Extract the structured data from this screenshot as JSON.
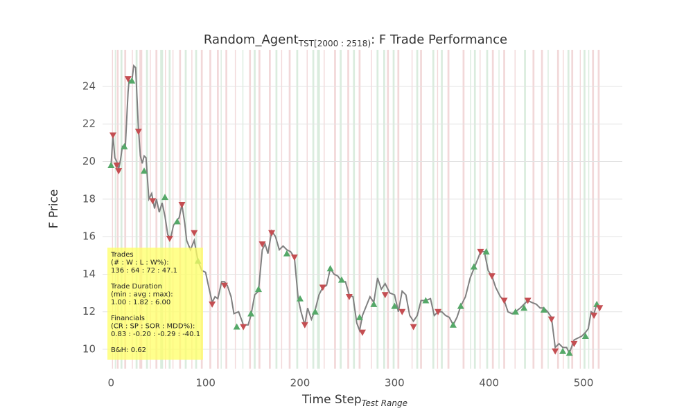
{
  "chart_data": {
    "type": "trade-line",
    "title_main": "Random_Agent",
    "title_sub": "TST[2000 : 2518)",
    "title_rest": ": F Trade Performance",
    "x_label_main": "Time Step",
    "x_label_sub": "Test Range",
    "y_label": "F Price",
    "xlim": [
      -9,
      541
    ],
    "ylim": [
      8.97,
      25.95
    ],
    "xticks": [
      0,
      100,
      200,
      300,
      400,
      500
    ],
    "yticks": [
      10,
      12,
      14,
      16,
      18,
      20,
      22,
      24
    ],
    "grid": true,
    "line_color": "#808080",
    "buy_color": "#55a868",
    "sell_color": "#c44e52",
    "x": [
      0,
      2,
      4,
      6,
      8,
      10,
      12,
      15,
      18,
      19,
      22,
      24,
      26,
      29,
      31,
      33,
      35,
      37,
      40,
      43,
      46,
      48,
      51,
      54,
      57,
      60,
      63,
      66,
      70,
      72,
      75,
      78,
      80,
      84,
      88,
      92,
      96,
      100,
      103,
      107,
      110,
      113,
      117,
      120,
      123,
      127,
      130,
      135,
      140,
      145,
      148,
      152,
      156,
      160,
      163,
      166,
      170,
      174,
      178,
      182,
      186,
      190,
      194,
      198,
      201,
      205,
      208,
      212,
      216,
      220,
      224,
      228,
      232,
      236,
      240,
      244,
      248,
      252,
      256,
      260,
      263,
      266,
      270,
      274,
      278,
      282,
      286,
      290,
      295,
      300,
      304,
      308,
      312,
      316,
      320,
      324,
      328,
      333,
      338,
      342,
      346,
      350,
      354,
      358,
      362,
      366,
      370,
      375,
      380,
      384,
      388,
      391,
      395,
      399,
      403,
      407,
      412,
      416,
      420,
      424,
      428,
      433,
      437,
      441,
      445,
      450,
      454,
      458,
      462,
      466,
      470,
      474,
      478,
      482,
      485,
      490,
      494,
      498,
      502,
      505,
      508,
      511,
      514,
      517
    ],
    "values": [
      19.8,
      21.4,
      20.2,
      20.0,
      19.6,
      20.1,
      20.8,
      20.7,
      23.7,
      24.3,
      24.3,
      25.1,
      25.0,
      21.7,
      20.3,
      19.9,
      20.3,
      20.2,
      18.0,
      18.3,
      17.5,
      18.0,
      17.3,
      17.8,
      17.1,
      16.1,
      15.9,
      16.6,
      16.9,
      17.0,
      17.7,
      16.7,
      15.8,
      15.3,
      15.8,
      14.7,
      14.2,
      14.1,
      13.4,
      12.5,
      12.8,
      12.7,
      13.6,
      13.6,
      13.4,
      12.8,
      11.9,
      12.0,
      11.3,
      11.3,
      11.8,
      12.9,
      13.1,
      15.3,
      15.6,
      15.1,
      16.3,
      16.0,
      15.3,
      15.5,
      15.3,
      15.2,
      14.9,
      12.7,
      12.0,
      11.3,
      12.2,
      11.6,
      12.1,
      12.9,
      13.3,
      13.4,
      14.3,
      14.0,
      13.9,
      13.6,
      13.6,
      12.9,
      12.8,
      11.4,
      11.0,
      11.8,
      12.3,
      12.8,
      12.5,
      13.8,
      13.2,
      13.5,
      13.0,
      12.9,
      12.0,
      13.1,
      12.9,
      11.8,
      11.5,
      11.8,
      12.6,
      12.6,
      12.7,
      11.8,
      12.0,
      12.0,
      11.8,
      11.7,
      11.3,
      11.7,
      12.3,
      12.8,
      13.8,
      14.3,
      14.8,
      15.2,
      15.2,
      14.2,
      13.9,
      13.3,
      12.8,
      12.6,
      12.0,
      11.9,
      12.0,
      12.2,
      12.4,
      12.6,
      12.5,
      12.4,
      12.2,
      12.2,
      12.0,
      11.7,
      10.1,
      10.3,
      10.1,
      10.1,
      9.8,
      10.5,
      10.6,
      10.7,
      10.9,
      11.1,
      12.0,
      11.9,
      12.4,
      12.2
    ],
    "buys": {
      "x": [
        0,
        14,
        22,
        35,
        57,
        70,
        92,
        133,
        148,
        156,
        186,
        200,
        216,
        232,
        244,
        263,
        278,
        300,
        333,
        362,
        370,
        384,
        397,
        428,
        437,
        458,
        478,
        485,
        502,
        514
      ],
      "values": [
        19.8,
        20.8,
        24.3,
        19.5,
        18.1,
        16.8,
        14.7,
        11.2,
        11.9,
        13.2,
        15.1,
        12.7,
        12.0,
        14.3,
        13.7,
        11.7,
        12.4,
        12.3,
        12.6,
        11.3,
        12.3,
        14.4,
        15.2,
        12.0,
        12.2,
        12.1,
        9.9,
        9.8,
        10.7,
        12.4
      ]
    },
    "sells": {
      "x": [
        2,
        6,
        8,
        18,
        29,
        44,
        62,
        75,
        88,
        107,
        120,
        140,
        160,
        170,
        194,
        205,
        224,
        252,
        266,
        290,
        308,
        320,
        346,
        391,
        403,
        416,
        441,
        466,
        470,
        490,
        511,
        517
      ],
      "values": [
        21.4,
        19.8,
        19.5,
        24.4,
        21.6,
        17.9,
        15.9,
        17.7,
        16.2,
        12.4,
        13.4,
        11.2,
        15.6,
        16.2,
        14.9,
        11.3,
        13.3,
        12.8,
        10.9,
        12.9,
        12.0,
        11.2,
        12.0,
        15.2,
        13.9,
        12.6,
        12.6,
        11.6,
        9.9,
        10.3,
        11.8,
        12.2
      ]
    },
    "sell_zones": [
      [
        1,
        2
      ],
      [
        6,
        8
      ],
      [
        14,
        16
      ],
      [
        22,
        23
      ],
      [
        30,
        33
      ],
      [
        41,
        42
      ],
      [
        47,
        49
      ],
      [
        57,
        58
      ],
      [
        65,
        66
      ],
      [
        72,
        74
      ],
      [
        85,
        86
      ],
      [
        95,
        97
      ],
      [
        104,
        106
      ],
      [
        112,
        114
      ],
      [
        121,
        123
      ],
      [
        131,
        132
      ],
      [
        146,
        148
      ],
      [
        156,
        158
      ],
      [
        167,
        169
      ],
      [
        180,
        181
      ],
      [
        188,
        190
      ],
      [
        207,
        208
      ],
      [
        225,
        226
      ],
      [
        236,
        238
      ],
      [
        250,
        252
      ],
      [
        262,
        264
      ],
      [
        275,
        276
      ],
      [
        292,
        294
      ],
      [
        303,
        305
      ],
      [
        318,
        319
      ],
      [
        327,
        329
      ],
      [
        345,
        346
      ],
      [
        356,
        358
      ],
      [
        372,
        374
      ],
      [
        390,
        391
      ],
      [
        403,
        405
      ],
      [
        415,
        417
      ],
      [
        427,
        428
      ],
      [
        446,
        448
      ],
      [
        455,
        457
      ],
      [
        472,
        474
      ],
      [
        478,
        479
      ],
      [
        487,
        489
      ],
      [
        496,
        497
      ],
      [
        509,
        511
      ],
      [
        515,
        517
      ]
    ],
    "buy_zones": [
      [
        4,
        5
      ],
      [
        10,
        12
      ],
      [
        26,
        28
      ],
      [
        37,
        39
      ],
      [
        52,
        55
      ],
      [
        61,
        63
      ],
      [
        78,
        80
      ],
      [
        89,
        91
      ],
      [
        116,
        117
      ],
      [
        139,
        140
      ],
      [
        151,
        153
      ],
      [
        174,
        176
      ],
      [
        196,
        198
      ],
      [
        213,
        215
      ],
      [
        218,
        221
      ],
      [
        242,
        244
      ],
      [
        256,
        258
      ],
      [
        281,
        283
      ],
      [
        288,
        290
      ],
      [
        298,
        300
      ],
      [
        323,
        325
      ],
      [
        340,
        342
      ],
      [
        349,
        351
      ],
      [
        380,
        381
      ],
      [
        384,
        386
      ],
      [
        397,
        399
      ],
      [
        410,
        411
      ],
      [
        437,
        439
      ],
      [
        462,
        463
      ],
      [
        483,
        485
      ],
      [
        500,
        502
      ],
      [
        505,
        506
      ]
    ],
    "stats_box": [
      [
        "Trades",
        "(# : W : L : W%):",
        "136 : 64 : 72 : 47.1"
      ],
      [
        "Trade Duration",
        "(min : avg : max):",
        "1.00 : 1.82 : 6.00"
      ],
      [
        "Financials",
        "(CR : SP : SOR : MDD%):",
        "0.83 : -0.20 : -0.29 : -40.1"
      ],
      [
        "B&H: 0.62"
      ]
    ]
  }
}
